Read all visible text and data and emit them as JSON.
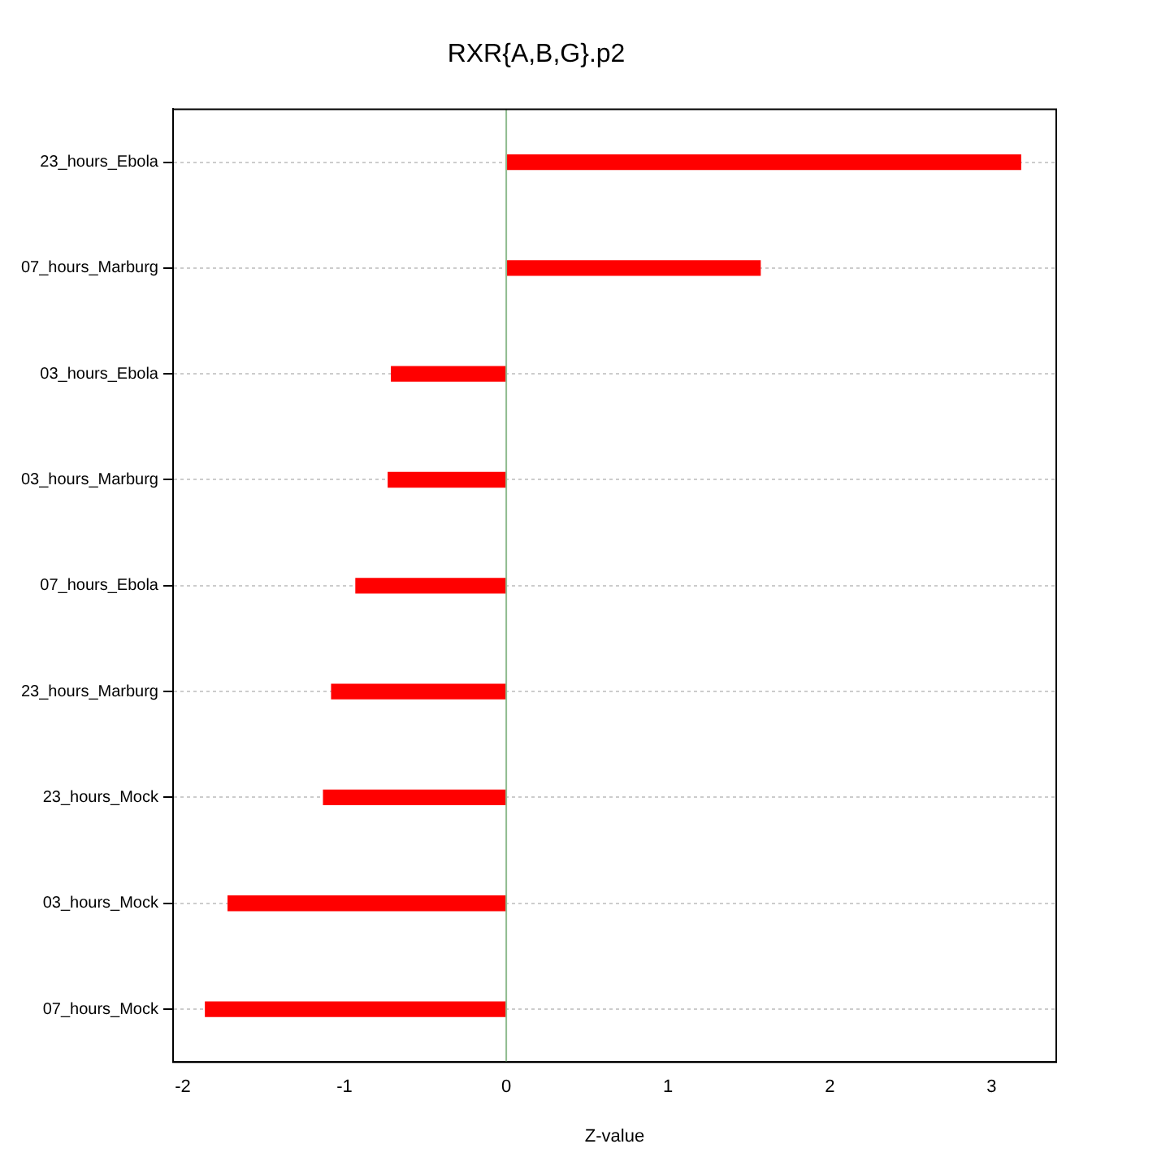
{
  "chart_data": {
    "type": "bar",
    "orientation": "horizontal",
    "title": "RXR{A,B,G}.p2",
    "xlabel": "Z-value",
    "categories": [
      "23_hours_Ebola",
      "07_hours_Marburg",
      "03_hours_Ebola",
      "03_hours_Marburg",
      "07_hours_Ebola",
      "23_hours_Marburg",
      "23_hours_Mock",
      "03_hours_Mock",
      "07_hours_Mock"
    ],
    "values": [
      3.18,
      1.57,
      -0.71,
      -0.73,
      -0.93,
      -1.08,
      -1.13,
      -1.72,
      -1.86
    ],
    "color": "#ff0000",
    "xlim": [
      -2.06,
      3.4
    ],
    "xticks": [
      -2,
      -1,
      0,
      1,
      2,
      3
    ],
    "grid": "y",
    "ref_lines": [
      {
        "axis": "x",
        "value": 0,
        "color": "#8fbc8f"
      }
    ],
    "legend": false
  }
}
